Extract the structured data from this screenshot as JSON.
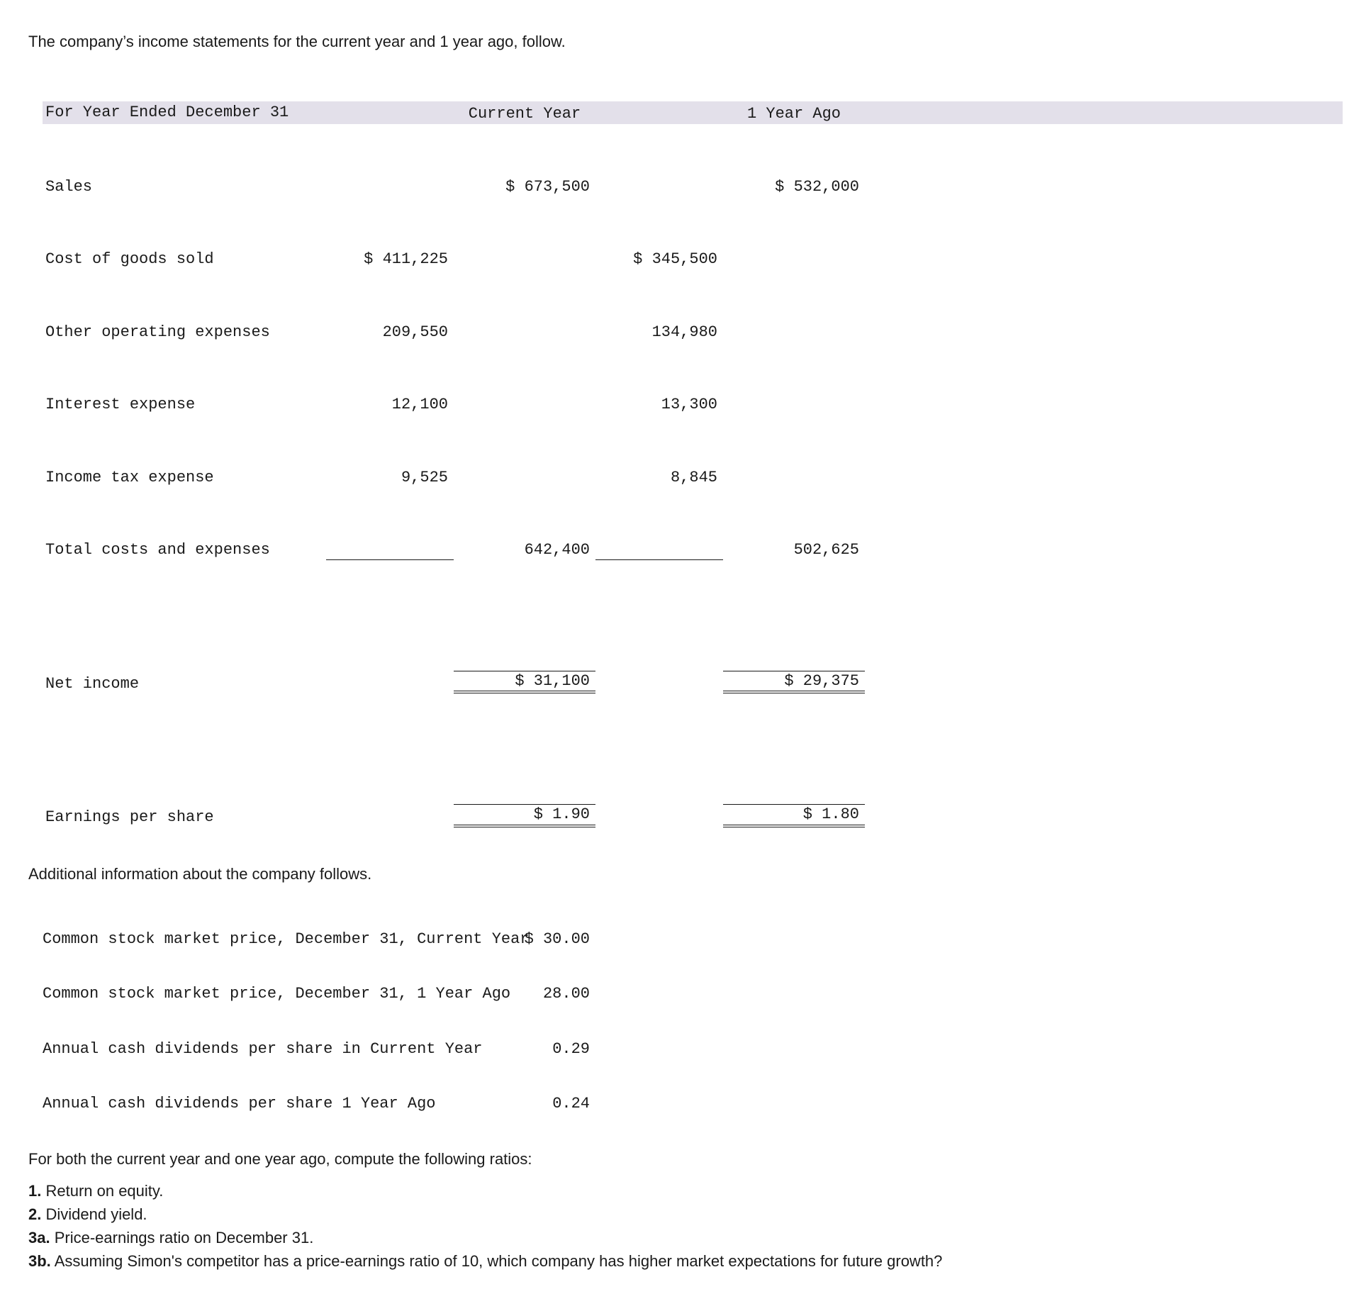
{
  "intro": "The company’s income statements for the current year and 1 year ago, follow.",
  "income": {
    "header": {
      "label": "For Year Ended December 31",
      "col_current": "Current Year",
      "col_prior": "1 Year Ago"
    },
    "rows": {
      "sales": {
        "label": "Sales",
        "cur_sub": "",
        "cur_tot": "$ 673,500",
        "pri_sub": "",
        "pri_tot": "$ 532,000"
      },
      "cogs": {
        "label": "Cost of goods sold",
        "cur_sub": "$ 411,225",
        "cur_tot": "",
        "pri_sub": "$ 345,500",
        "pri_tot": ""
      },
      "opex": {
        "label": "Other operating expenses",
        "cur_sub": "209,550",
        "cur_tot": "",
        "pri_sub": "134,980",
        "pri_tot": ""
      },
      "intexp": {
        "label": "Interest expense",
        "cur_sub": "12,100",
        "cur_tot": "",
        "pri_sub": "13,300",
        "pri_tot": ""
      },
      "taxexp": {
        "label": "Income tax expense",
        "cur_sub": "9,525",
        "cur_tot": "",
        "pri_sub": "8,845",
        "pri_tot": ""
      },
      "totcost": {
        "label": "Total costs and expenses",
        "cur_sub": "",
        "cur_tot": "642,400",
        "pri_sub": "",
        "pri_tot": "502,625"
      },
      "netinc": {
        "label": "Net income",
        "cur_sub": "",
        "cur_tot": "$ 31,100",
        "pri_sub": "",
        "pri_tot": "$ 29,375"
      },
      "eps": {
        "label": "Earnings per share",
        "cur_sub": "",
        "cur_tot": "$ 1.90",
        "pri_sub": "",
        "pri_tot": "$ 1.80"
      }
    }
  },
  "addl_intro": "Additional information about the company follows.",
  "addl": {
    "rows": [
      {
        "label": "Common stock market price, December 31, Current Year",
        "value": "$ 30.00"
      },
      {
        "label": "Common stock market price, December 31, 1 Year Ago",
        "value": "28.00"
      },
      {
        "label": "Annual cash dividends per share in Current Year",
        "value": "0.29"
      },
      {
        "label": "Annual cash dividends per share 1 Year Ago",
        "value": "0.24"
      }
    ]
  },
  "compute_intro": "For both the current year and one year ago, compute the following ratios:",
  "questions": {
    "q1_num": "1.",
    "q1_text": " Return on equity.",
    "q2_num": "2.",
    "q2_text": " Dividend yield.",
    "q3a_num": "3a.",
    "q3a_text": " Price-earnings ratio on December 31.",
    "q3b_num": "3b.",
    "q3b_text": " Assuming Simon's competitor has a price-earnings ratio of 10, which company has higher market expectations for future growth?"
  }
}
